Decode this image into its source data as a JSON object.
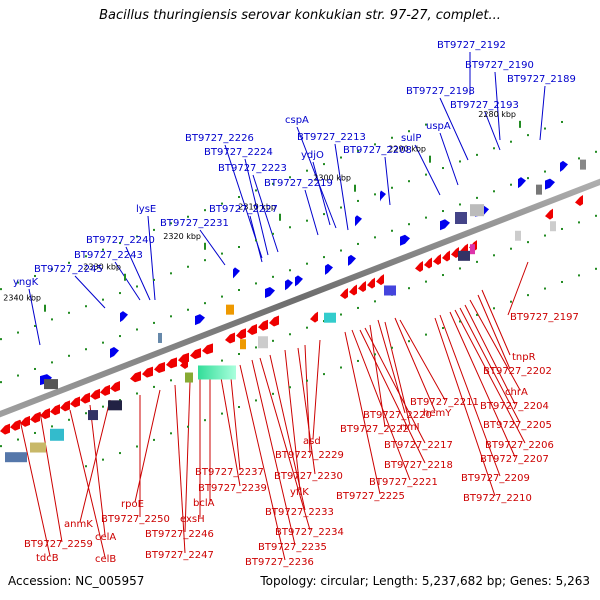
{
  "title": "Bacillus thuringiensis serovar konkukian str. 97-27, complet...",
  "footer": {
    "accession": "Accession: NC_005957",
    "summary": "Topology: circular; Length: 5,237,682 bp; Genes: 5,263"
  },
  "colors": {
    "forward_label": "#0000cc",
    "reverse_label": "#cc0000",
    "forward_gene": "#0000ee",
    "reverse_gene": "#ee0000",
    "backbone": "#808080",
    "tick": "#228b22"
  },
  "scale_ticks": [
    "2280 kbp",
    "2290 kbp",
    "2300 kbp",
    "2310 kbp",
    "2320 kbp",
    "2330 kbp",
    "2340 kbp"
  ],
  "forward_labels": [
    "BT9727_2192",
    "BT9727_2190",
    "BT9727_2189",
    "BT9727_2198",
    "BT9727_2193",
    "uspA",
    "sulP",
    "cspA",
    "BT9727_2213",
    "BT9727_2208",
    "ydjO",
    "BT9727_2226",
    "BT9727_2224",
    "BT9727_2223",
    "BT9727_2219",
    "BT9727_2227",
    "lysE",
    "BT9727_2231",
    "BT9727_2240",
    "BT9727_2243",
    "BT9727_2245",
    "yngK"
  ],
  "reverse_labels": [
    "BT9727_2197",
    "tnpR",
    "BT9727_2202",
    "chrA",
    "BT9727_2204",
    "BT9727_2205",
    "BT9727_2206",
    "BT9727_2207",
    "BT9727_2209",
    "BT9727_2210",
    "BT9727_2211",
    "hemY",
    "rimI",
    "BT9727_2220",
    "BT9727_2222",
    "BT9727_2217",
    "BT9727_2218",
    "BT9727_2221",
    "BT9727_2225",
    "asd",
    "BT9727_2229",
    "BT9727_2230",
    "yflK",
    "BT9727_2233",
    "BT9727_2234",
    "BT9727_2235",
    "BT9727_2236",
    "BT9727_2237",
    "BT9727_2239",
    "bclA",
    "exsH",
    "BT9727_2246",
    "BT9727_2247",
    "rpoE",
    "BT9727_2250",
    "anmK",
    "celA",
    "celB",
    "BT9727_2259",
    "tdcB"
  ]
}
